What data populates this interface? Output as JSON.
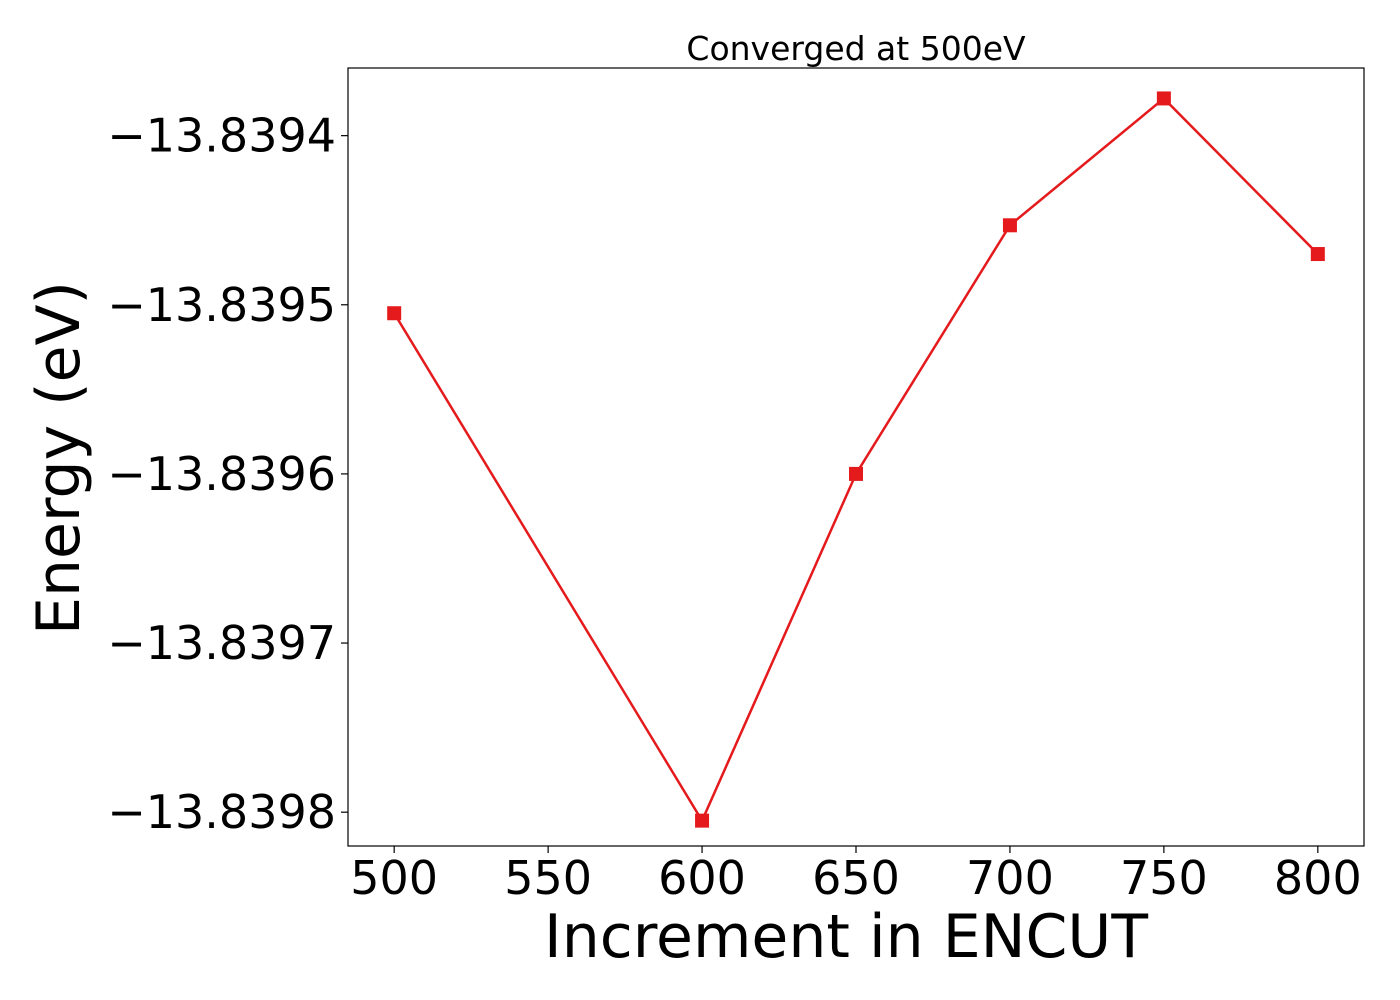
{
  "chart_data": {
    "type": "line",
    "title": "Converged at 500eV",
    "xlabel": "Increment in ENCUT",
    "ylabel": "Energy (eV)",
    "xlim": [
      485,
      815
    ],
    "ylim": [
      -13.83982,
      -13.83936
    ],
    "x_ticks": [
      500,
      550,
      600,
      650,
      700,
      750,
      800
    ],
    "x_tick_labels": [
      "500",
      "550",
      "600",
      "650",
      "700",
      "750",
      "800"
    ],
    "y_ticks": [
      -13.8394,
      -13.8395,
      -13.8396,
      -13.8397,
      -13.8398
    ],
    "y_tick_labels": [
      "−13.8394",
      "−13.8395",
      "−13.8396",
      "−13.8397",
      "−13.8398"
    ],
    "grid": false,
    "legend": "none",
    "series": [
      {
        "x": [
          500,
          600,
          650,
          700,
          750,
          800
        ],
        "y": [
          -13.839505,
          -13.839805,
          -13.8396,
          -13.839453,
          -13.839378,
          -13.83947
        ],
        "color": "#e41a1c",
        "marker": "square"
      }
    ]
  }
}
